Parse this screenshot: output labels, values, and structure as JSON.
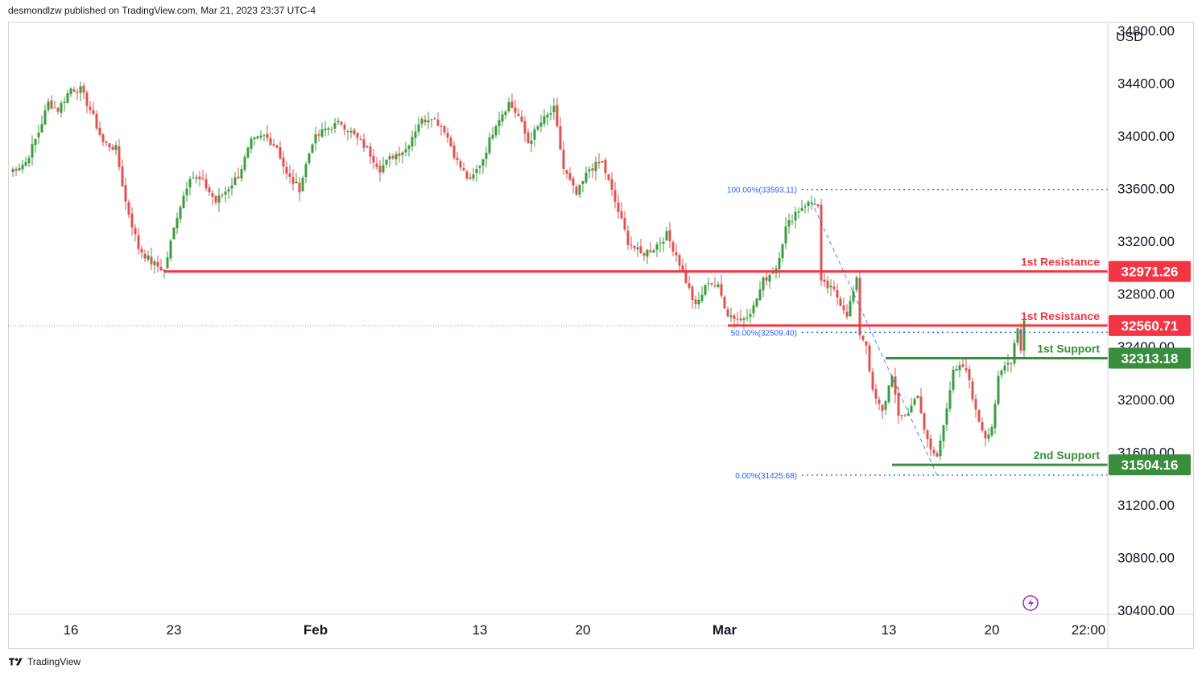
{
  "header": {
    "publisher_line": "desmondlzw published on TradingView.com, Mar 21, 2023 23:37 UTC-4"
  },
  "footer": {
    "brand": "TradingView",
    "logo_icon": "tradingview-logo-icon"
  },
  "chart_data": {
    "type": "candlestick",
    "currency_label": "USD",
    "y_range": [
      30370,
      34860
    ],
    "y_ticks": [
      "34800.00",
      "34400.00",
      "34000.00",
      "33600.00",
      "33200.00",
      "32800.00",
      "32400.00",
      "32000.00",
      "31600.00",
      "31200.00",
      "30800.00",
      "30400.00"
    ],
    "y_tick_values": [
      34800,
      34400,
      34000,
      33600,
      33200,
      32800,
      32400,
      32000,
      31600,
      31200,
      30800,
      30400
    ],
    "x_ticks": [
      {
        "label": "16",
        "bar": 19
      },
      {
        "label": "23",
        "bar": 51
      },
      {
        "label": "Feb",
        "bar": 95
      },
      {
        "label": "13",
        "bar": 146
      },
      {
        "label": "20",
        "bar": 178
      },
      {
        "label": "Mar",
        "bar": 222
      },
      {
        "label": "13",
        "bar": 273
      },
      {
        "label": "20",
        "bar": 305
      },
      {
        "label": "22:00",
        "bar": 336
      }
    ],
    "bar_count": 345,
    "up_color": "#26a69a",
    "down_color": "#ef5350",
    "candle_up_color": "#3a9c3f",
    "candle_down_color": "#e0524f",
    "anchors": [
      [
        0,
        33730
      ],
      [
        5,
        33800
      ],
      [
        9,
        34030
      ],
      [
        12,
        34250
      ],
      [
        15,
        34200
      ],
      [
        19,
        34360
      ],
      [
        22,
        34350
      ],
      [
        25,
        34200
      ],
      [
        29,
        33950
      ],
      [
        33,
        33900
      ],
      [
        36,
        33500
      ],
      [
        40,
        33150
      ],
      [
        44,
        33040
      ],
      [
        48,
        32980
      ],
      [
        52,
        33400
      ],
      [
        56,
        33700
      ],
      [
        60,
        33650
      ],
      [
        64,
        33500
      ],
      [
        67,
        33580
      ],
      [
        71,
        33700
      ],
      [
        75,
        33950
      ],
      [
        79,
        34000
      ],
      [
        83,
        33920
      ],
      [
        86,
        33700
      ],
      [
        90,
        33600
      ],
      [
        94,
        33960
      ],
      [
        98,
        34050
      ],
      [
        103,
        34100
      ],
      [
        107,
        34000
      ],
      [
        111,
        33900
      ],
      [
        115,
        33750
      ],
      [
        119,
        33850
      ],
      [
        123,
        33900
      ],
      [
        127,
        34100
      ],
      [
        131,
        34150
      ],
      [
        135,
        34050
      ],
      [
        139,
        33800
      ],
      [
        143,
        33650
      ],
      [
        147,
        33830
      ],
      [
        151,
        34100
      ],
      [
        155,
        34250
      ],
      [
        158,
        34150
      ],
      [
        161,
        33950
      ],
      [
        165,
        34100
      ],
      [
        169,
        34200
      ],
      [
        172,
        33750
      ],
      [
        176,
        33550
      ],
      [
        180,
        33750
      ],
      [
        184,
        33800
      ],
      [
        188,
        33500
      ],
      [
        192,
        33200
      ],
      [
        196,
        33100
      ],
      [
        200,
        33150
      ],
      [
        204,
        33250
      ],
      [
        207,
        33100
      ],
      [
        210,
        32900
      ],
      [
        213,
        32700
      ],
      [
        217,
        32900
      ],
      [
        220,
        32850
      ],
      [
        223,
        32650
      ],
      [
        227,
        32600
      ],
      [
        231,
        32700
      ],
      [
        234,
        32900
      ],
      [
        238,
        33000
      ],
      [
        241,
        33300
      ],
      [
        244,
        33420
      ],
      [
        247,
        33480
      ],
      [
        250,
        33500
      ],
      [
        251,
        33460
      ],
      [
        252,
        32880
      ],
      [
        256,
        32820
      ],
      [
        260,
        32650
      ],
      [
        263,
        32900
      ],
      [
        264,
        32500
      ],
      [
        266,
        32420
      ],
      [
        268,
        32050
      ],
      [
        271,
        31900
      ],
      [
        274,
        32200
      ],
      [
        276,
        31850
      ],
      [
        279,
        31900
      ],
      [
        282,
        32050
      ],
      [
        284,
        31750
      ],
      [
        286,
        31620
      ],
      [
        288,
        31560
      ],
      [
        290,
        31830
      ],
      [
        293,
        32200
      ],
      [
        296,
        32250
      ],
      [
        298,
        32150
      ],
      [
        300,
        31900
      ],
      [
        303,
        31720
      ],
      [
        305,
        31800
      ],
      [
        307,
        32150
      ],
      [
        309,
        32250
      ],
      [
        311,
        32300
      ],
      [
        313,
        32560
      ],
      [
        314,
        32370
      ],
      [
        315,
        32600
      ]
    ],
    "annotations": {
      "horizontal_levels": [
        {
          "label": "1st Resistance",
          "value": 32971.26,
          "value_label": "32971.26",
          "color": "#f23645",
          "start_bar": 48,
          "role": "resistance"
        },
        {
          "label": "1st Resistance",
          "value": 32560.71,
          "value_label": "32560.71",
          "color": "#f23645",
          "start_bar": 223,
          "role": "resistance"
        },
        {
          "label": "1st Support",
          "value": 32313.18,
          "value_label": "32313.18",
          "color": "#388e3c",
          "start_bar": 272,
          "role": "support"
        },
        {
          "label": "2nd Support",
          "value": 31504.16,
          "value_label": "31504.16",
          "color": "#388e3c",
          "start_bar": 274,
          "role": "support"
        }
      ],
      "fibonacci": {
        "color": "#2962ff",
        "start_bar": 246,
        "levels": [
          {
            "label": "100.00%(33593.11)",
            "value": 33593.11
          },
          {
            "label": "50.00%(32509.40)",
            "value": 32509.4
          },
          {
            "label": "0.00%(31425.68)",
            "value": 31425.68
          }
        ],
        "trend_line": {
          "from_bar": 249,
          "from_value": 33500,
          "to_bar": 288,
          "to_value": 31425.68
        }
      },
      "current_price_line": {
        "value": 32560,
        "color": "#f23645"
      },
      "icon": "lightning-bolt-icon"
    }
  }
}
